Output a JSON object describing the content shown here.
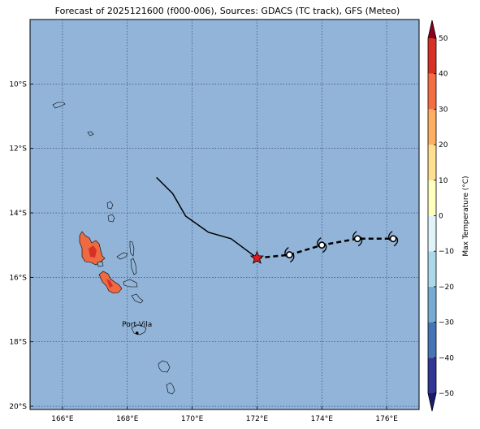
{
  "title": "Forecast of 2025121600 (f000-006), Sources: GDACS (TC track), GFS (Meteo)",
  "colors": {
    "ocean": "#91b4d8",
    "grid": "#2a3a6a",
    "warm_land": "#ee6a43",
    "hot_land": "#d73027",
    "track_past": "#000000",
    "storm_star": "#e31a1c"
  },
  "map": {
    "lon_range": [
      165,
      177
    ],
    "lat_range": [
      -20.1,
      -8
    ],
    "lon_ticks": [
      {
        "value": 166,
        "label": "166°E"
      },
      {
        "value": 168,
        "label": "168°E"
      },
      {
        "value": 170,
        "label": "170°E"
      },
      {
        "value": 172,
        "label": "172°E"
      },
      {
        "value": 174,
        "label": "174°E"
      },
      {
        "value": 176,
        "label": "176°E"
      }
    ],
    "lat_ticks": [
      {
        "value": -10,
        "label": "10°S"
      },
      {
        "value": -12,
        "label": "12°S"
      },
      {
        "value": -14,
        "label": "14°S"
      },
      {
        "value": -16,
        "label": "16°S"
      },
      {
        "value": -18,
        "label": "18°S"
      },
      {
        "value": -20,
        "label": "20°S"
      }
    ],
    "city": {
      "name": "Port-Vila",
      "lon": 168.3,
      "lat": -17.73
    },
    "past_track": [
      [
        168.9,
        -12.9
      ],
      [
        169.4,
        -13.4
      ],
      [
        169.8,
        -14.1
      ],
      [
        170.5,
        -14.6
      ],
      [
        171.2,
        -14.8
      ],
      [
        172.0,
        -15.4
      ]
    ],
    "current_position": [
      172.0,
      -15.4
    ],
    "forecast_track": [
      [
        172.0,
        -15.4
      ],
      [
        173.0,
        -15.3
      ],
      [
        174.0,
        -15.0
      ],
      [
        175.1,
        -14.8
      ],
      [
        176.2,
        -14.8
      ]
    ],
    "forecast_points": [
      [
        173.0,
        -15.3
      ],
      [
        174.0,
        -15.0
      ],
      [
        175.1,
        -14.8
      ],
      [
        176.2,
        -14.8
      ]
    ]
  },
  "colorbar": {
    "label": "Max Temperature (°C)",
    "min": -50,
    "max": 50,
    "ticks": [
      "50",
      "40",
      "30",
      "20",
      "10",
      "0",
      "−10",
      "−20",
      "−30",
      "−40",
      "−50"
    ],
    "colors": [
      "#313695",
      "#4575b4",
      "#74add1",
      "#abd9e9",
      "#e0f3f8",
      "#ffffbf",
      "#fee090",
      "#fdae61",
      "#f46d43",
      "#d73027"
    ],
    "under_color": "#1a1a6e",
    "over_color": "#8b0020"
  }
}
